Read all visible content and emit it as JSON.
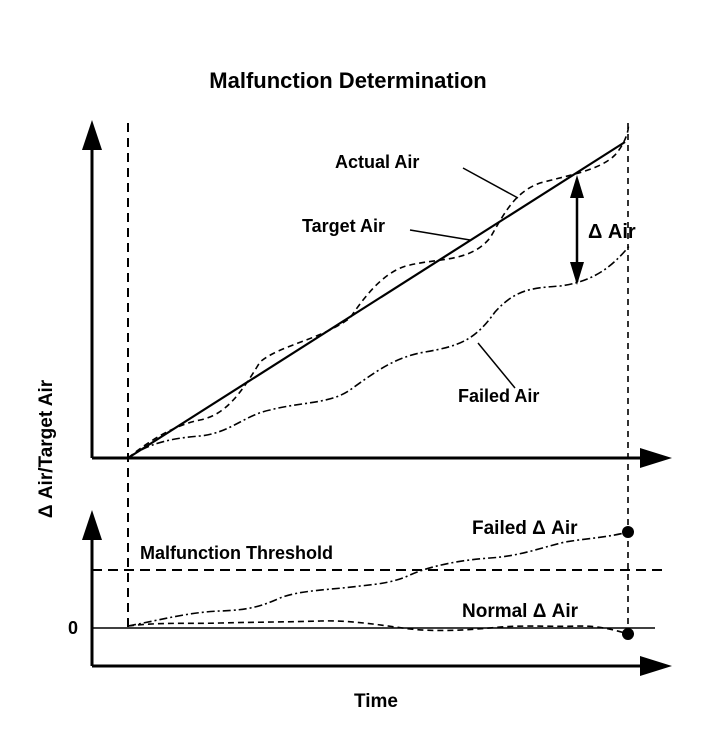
{
  "title": "Malfunction Determination",
  "labels": {
    "actual_air": "Actual Air",
    "target_air": "Target Air",
    "delta_air": "Δ Air",
    "failed_air": "Failed Air",
    "y_axis": "Δ Air/Target Air",
    "x_axis": "Time",
    "malfunction_threshold": "Malfunction Threshold",
    "failed_delta_air": "Failed  Δ Air",
    "normal_delta_air": "Normal  Δ Air",
    "zero_tick": "0"
  },
  "colors": {
    "ink": "#000000",
    "background": "#ffffff"
  }
}
